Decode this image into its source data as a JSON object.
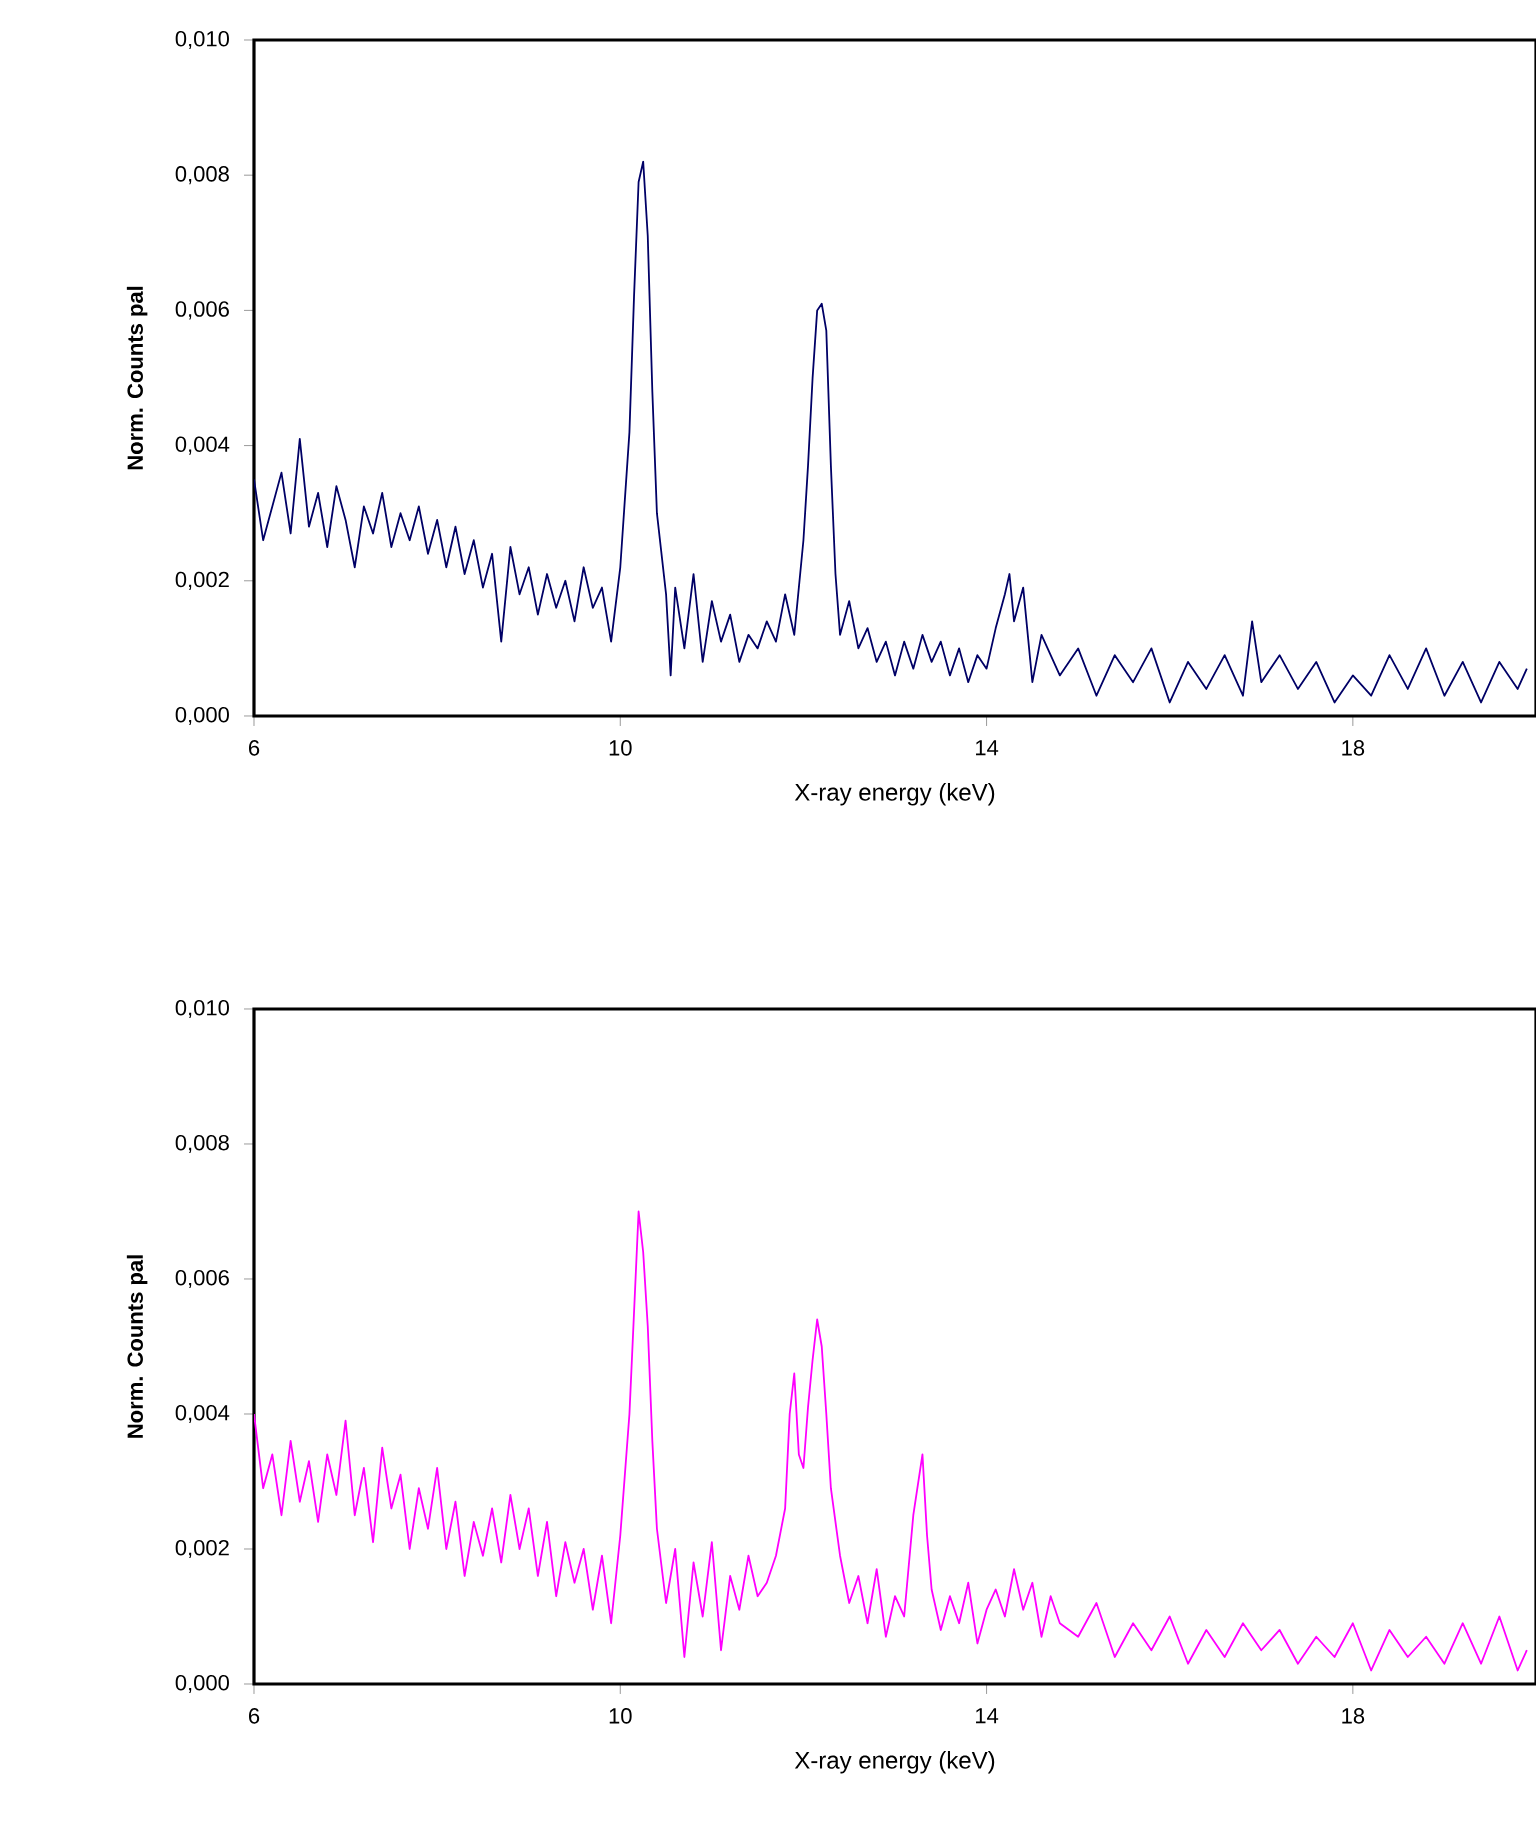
{
  "chart_data": [
    {
      "type": "line",
      "xlabel": "X-ray energy (keV)",
      "ylabel": "Norm. Counts pal",
      "color": "#000066",
      "xlim": [
        6,
        20
      ],
      "xticks": [
        6,
        10,
        14,
        18
      ],
      "ylim": [
        0,
        0.01
      ],
      "yticks": [
        {
          "value": 0,
          "label": "0,000"
        },
        {
          "value": 0.002,
          "label": "0,002"
        },
        {
          "value": 0.004,
          "label": "0,004"
        },
        {
          "value": 0.006,
          "label": "0,006"
        },
        {
          "value": 0.008,
          "label": "0,008"
        },
        {
          "value": 0.01,
          "label": "0,010"
        }
      ],
      "x": [
        6.0,
        6.1,
        6.2,
        6.3,
        6.4,
        6.5,
        6.6,
        6.7,
        6.8,
        6.9,
        7.0,
        7.1,
        7.2,
        7.3,
        7.4,
        7.5,
        7.6,
        7.7,
        7.8,
        7.9,
        8.0,
        8.1,
        8.2,
        8.3,
        8.4,
        8.5,
        8.6,
        8.7,
        8.8,
        8.9,
        9.0,
        9.1,
        9.2,
        9.3,
        9.4,
        9.5,
        9.6,
        9.7,
        9.8,
        9.9,
        10.0,
        10.1,
        10.15,
        10.2,
        10.25,
        10.3,
        10.35,
        10.4,
        10.5,
        10.55,
        10.6,
        10.7,
        10.8,
        10.9,
        11.0,
        11.1,
        11.2,
        11.3,
        11.4,
        11.5,
        11.6,
        11.7,
        11.8,
        11.9,
        12.0,
        12.05,
        12.1,
        12.15,
        12.2,
        12.25,
        12.3,
        12.35,
        12.4,
        12.5,
        12.6,
        12.7,
        12.8,
        12.9,
        13.0,
        13.1,
        13.2,
        13.3,
        13.4,
        13.5,
        13.6,
        13.7,
        13.8,
        13.9,
        14.0,
        14.1,
        14.2,
        14.25,
        14.3,
        14.4,
        14.5,
        14.6,
        14.8,
        15.0,
        15.2,
        15.4,
        15.6,
        15.8,
        16.0,
        16.2,
        16.4,
        16.6,
        16.8,
        16.9,
        17.0,
        17.2,
        17.4,
        17.6,
        17.8,
        18.0,
        18.2,
        18.4,
        18.6,
        18.8,
        19.0,
        19.2,
        19.4,
        19.6,
        19.8,
        19.9
      ],
      "values": [
        0.0035,
        0.0026,
        0.0031,
        0.0036,
        0.0027,
        0.0041,
        0.0028,
        0.0033,
        0.0025,
        0.0034,
        0.0029,
        0.0022,
        0.0031,
        0.0027,
        0.0033,
        0.0025,
        0.003,
        0.0026,
        0.0031,
        0.0024,
        0.0029,
        0.0022,
        0.0028,
        0.0021,
        0.0026,
        0.0019,
        0.0024,
        0.0011,
        0.0025,
        0.0018,
        0.0022,
        0.0015,
        0.0021,
        0.0016,
        0.002,
        0.0014,
        0.0022,
        0.0016,
        0.0019,
        0.0011,
        0.0022,
        0.0042,
        0.0062,
        0.0079,
        0.0082,
        0.0071,
        0.0048,
        0.003,
        0.0018,
        0.0006,
        0.0019,
        0.001,
        0.0021,
        0.0008,
        0.0017,
        0.0011,
        0.0015,
        0.0008,
        0.0012,
        0.001,
        0.0014,
        0.0011,
        0.0018,
        0.0012,
        0.0026,
        0.0037,
        0.005,
        0.006,
        0.0061,
        0.0057,
        0.0037,
        0.0021,
        0.0012,
        0.0017,
        0.001,
        0.0013,
        0.0008,
        0.0011,
        0.0006,
        0.0011,
        0.0007,
        0.0012,
        0.0008,
        0.0011,
        0.0006,
        0.001,
        0.0005,
        0.0009,
        0.0007,
        0.0013,
        0.0018,
        0.0021,
        0.0014,
        0.0019,
        0.0005,
        0.0012,
        0.0006,
        0.001,
        0.0003,
        0.0009,
        0.0005,
        0.001,
        0.0002,
        0.0008,
        0.0004,
        0.0009,
        0.0003,
        0.0014,
        0.0005,
        0.0009,
        0.0004,
        0.0008,
        0.0002,
        0.0006,
        0.0003,
        0.0009,
        0.0004,
        0.001,
        0.0003,
        0.0008,
        0.0002,
        0.0008,
        0.0004,
        0.0007
      ]
    },
    {
      "type": "line",
      "xlabel": "X-ray energy (keV)",
      "ylabel": "Norm. Counts pal",
      "color": "#ff00ff",
      "xlim": [
        6,
        20
      ],
      "xticks": [
        6,
        10,
        14,
        18
      ],
      "ylim": [
        0,
        0.01
      ],
      "yticks": [
        {
          "value": 0,
          "label": "0,000"
        },
        {
          "value": 0.002,
          "label": "0,002"
        },
        {
          "value": 0.004,
          "label": "0,004"
        },
        {
          "value": 0.006,
          "label": "0,006"
        },
        {
          "value": 0.008,
          "label": "0,008"
        },
        {
          "value": 0.01,
          "label": "0,010"
        }
      ],
      "x": [
        6.0,
        6.1,
        6.2,
        6.3,
        6.4,
        6.5,
        6.6,
        6.7,
        6.8,
        6.9,
        7.0,
        7.1,
        7.2,
        7.3,
        7.4,
        7.5,
        7.6,
        7.7,
        7.8,
        7.9,
        8.0,
        8.1,
        8.2,
        8.3,
        8.4,
        8.5,
        8.6,
        8.7,
        8.8,
        8.9,
        9.0,
        9.1,
        9.2,
        9.3,
        9.4,
        9.5,
        9.6,
        9.7,
        9.8,
        9.9,
        10.0,
        10.1,
        10.15,
        10.2,
        10.25,
        10.3,
        10.35,
        10.4,
        10.5,
        10.6,
        10.7,
        10.8,
        10.9,
        11.0,
        11.1,
        11.2,
        11.3,
        11.4,
        11.5,
        11.6,
        11.7,
        11.8,
        11.85,
        11.9,
        11.95,
        12.0,
        12.05,
        12.1,
        12.15,
        12.2,
        12.25,
        12.3,
        12.4,
        12.5,
        12.6,
        12.7,
        12.8,
        12.9,
        13.0,
        13.1,
        13.2,
        13.3,
        13.35,
        13.4,
        13.5,
        13.6,
        13.7,
        13.8,
        13.9,
        14.0,
        14.1,
        14.2,
        14.3,
        14.4,
        14.5,
        14.6,
        14.7,
        14.8,
        15.0,
        15.2,
        15.4,
        15.6,
        15.8,
        16.0,
        16.2,
        16.4,
        16.6,
        16.8,
        17.0,
        17.2,
        17.4,
        17.6,
        17.8,
        18.0,
        18.2,
        18.4,
        18.6,
        18.8,
        19.0,
        19.2,
        19.4,
        19.6,
        19.8,
        19.9
      ],
      "values": [
        0.004,
        0.0029,
        0.0034,
        0.0025,
        0.0036,
        0.0027,
        0.0033,
        0.0024,
        0.0034,
        0.0028,
        0.0039,
        0.0025,
        0.0032,
        0.0021,
        0.0035,
        0.0026,
        0.0031,
        0.002,
        0.0029,
        0.0023,
        0.0032,
        0.002,
        0.0027,
        0.0016,
        0.0024,
        0.0019,
        0.0026,
        0.0018,
        0.0028,
        0.002,
        0.0026,
        0.0016,
        0.0024,
        0.0013,
        0.0021,
        0.0015,
        0.002,
        0.0011,
        0.0019,
        0.0009,
        0.0022,
        0.004,
        0.0055,
        0.007,
        0.0064,
        0.0053,
        0.0036,
        0.0023,
        0.0012,
        0.002,
        0.0004,
        0.0018,
        0.001,
        0.0021,
        0.0005,
        0.0016,
        0.0011,
        0.0019,
        0.0013,
        0.0015,
        0.0019,
        0.0026,
        0.004,
        0.0046,
        0.0034,
        0.0032,
        0.0041,
        0.0048,
        0.0054,
        0.005,
        0.004,
        0.0029,
        0.0019,
        0.0012,
        0.0016,
        0.0009,
        0.0017,
        0.0007,
        0.0013,
        0.001,
        0.0025,
        0.0034,
        0.0022,
        0.0014,
        0.0008,
        0.0013,
        0.0009,
        0.0015,
        0.0006,
        0.0011,
        0.0014,
        0.001,
        0.0017,
        0.0011,
        0.0015,
        0.0007,
        0.0013,
        0.0009,
        0.0007,
        0.0012,
        0.0004,
        0.0009,
        0.0005,
        0.001,
        0.0003,
        0.0008,
        0.0004,
        0.0009,
        0.0005,
        0.0008,
        0.0003,
        0.0007,
        0.0004,
        0.0009,
        0.0002,
        0.0008,
        0.0004,
        0.0007,
        0.0003,
        0.0009,
        0.0003,
        0.001,
        0.0002,
        0.0005
      ]
    }
  ]
}
